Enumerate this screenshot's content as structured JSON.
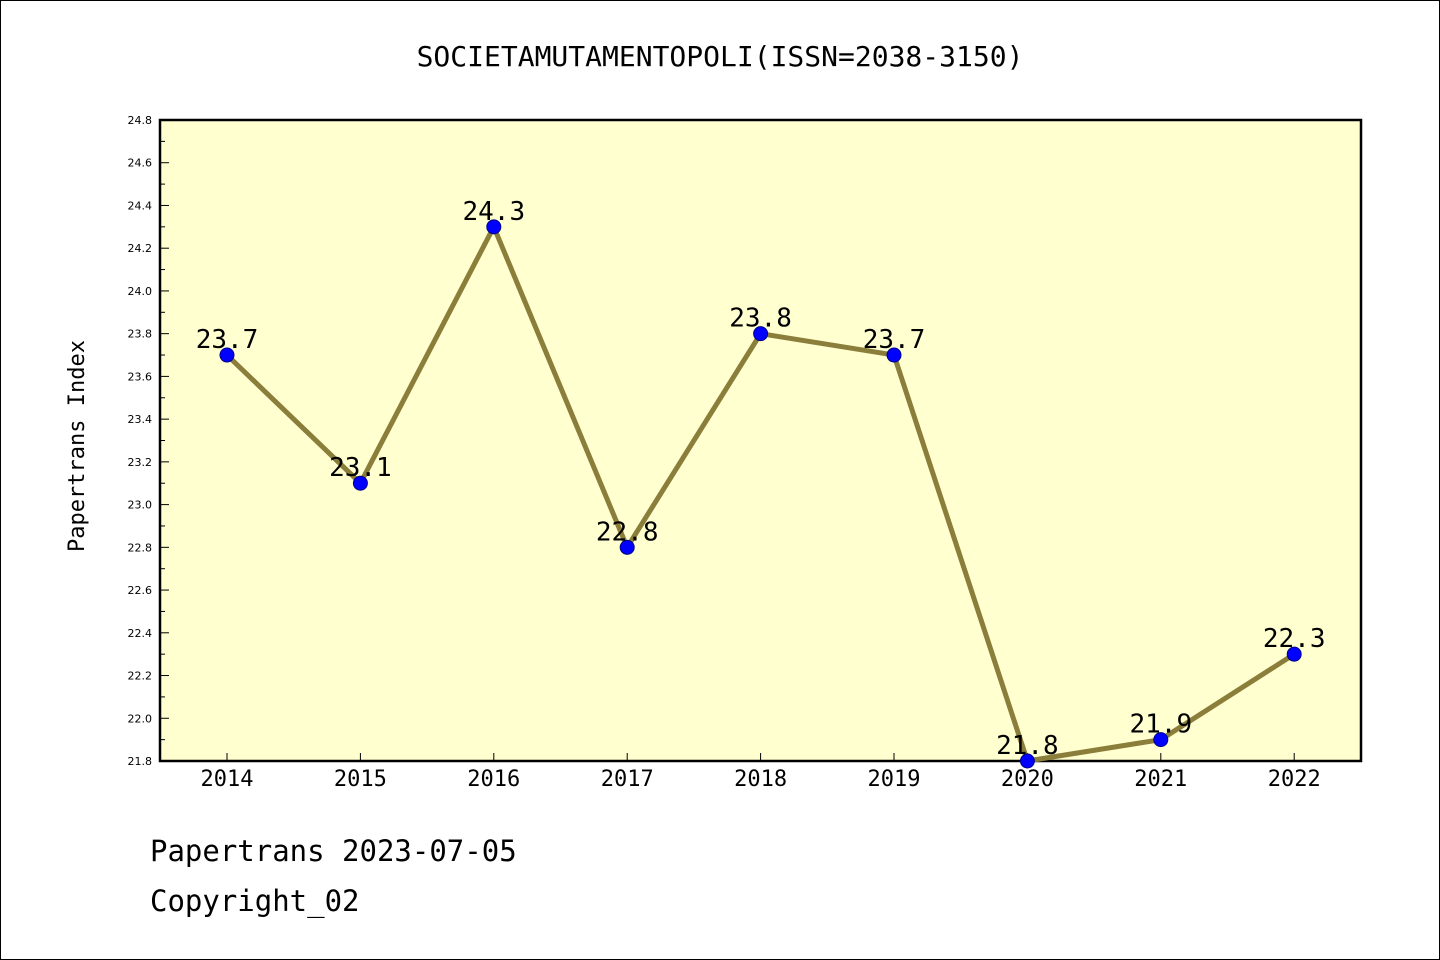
{
  "colors": {
    "plot_background": "#ffffd0",
    "line": "#8b7d3a",
    "marker": "#0000ff",
    "marker_edge": "#00008b"
  },
  "footer": {
    "line1": "Papertrans 2023-07-05",
    "line2": "Copyright_02"
  },
  "chart_data": {
    "type": "line",
    "title": "SOCIETAMUTAMENTOPOLI(ISSN=2038-3150)",
    "xlabel": "",
    "ylabel": "Papertrans Index",
    "x": [
      "2014",
      "2015",
      "2016",
      "2017",
      "2018",
      "2019",
      "2020",
      "2021",
      "2022"
    ],
    "series": [
      {
        "values": [
          23.7,
          23.1,
          24.3,
          22.8,
          23.8,
          23.7,
          21.8,
          21.9,
          22.3
        ],
        "labels": [
          "23.7",
          "23.1",
          "24.3",
          "22.8",
          "23.8",
          "23.7",
          "21.8",
          "21.9",
          "22.3"
        ]
      }
    ],
    "ylim": [
      21.8,
      24.8
    ],
    "yticks": [
      "21.8",
      "22.0",
      "22.2",
      "22.4",
      "22.6",
      "22.8",
      "23.0",
      "23.2",
      "23.4",
      "23.6",
      "23.8",
      "24.0",
      "24.2",
      "24.4",
      "24.6",
      "24.8"
    ],
    "grid": false,
    "legend": "none"
  }
}
